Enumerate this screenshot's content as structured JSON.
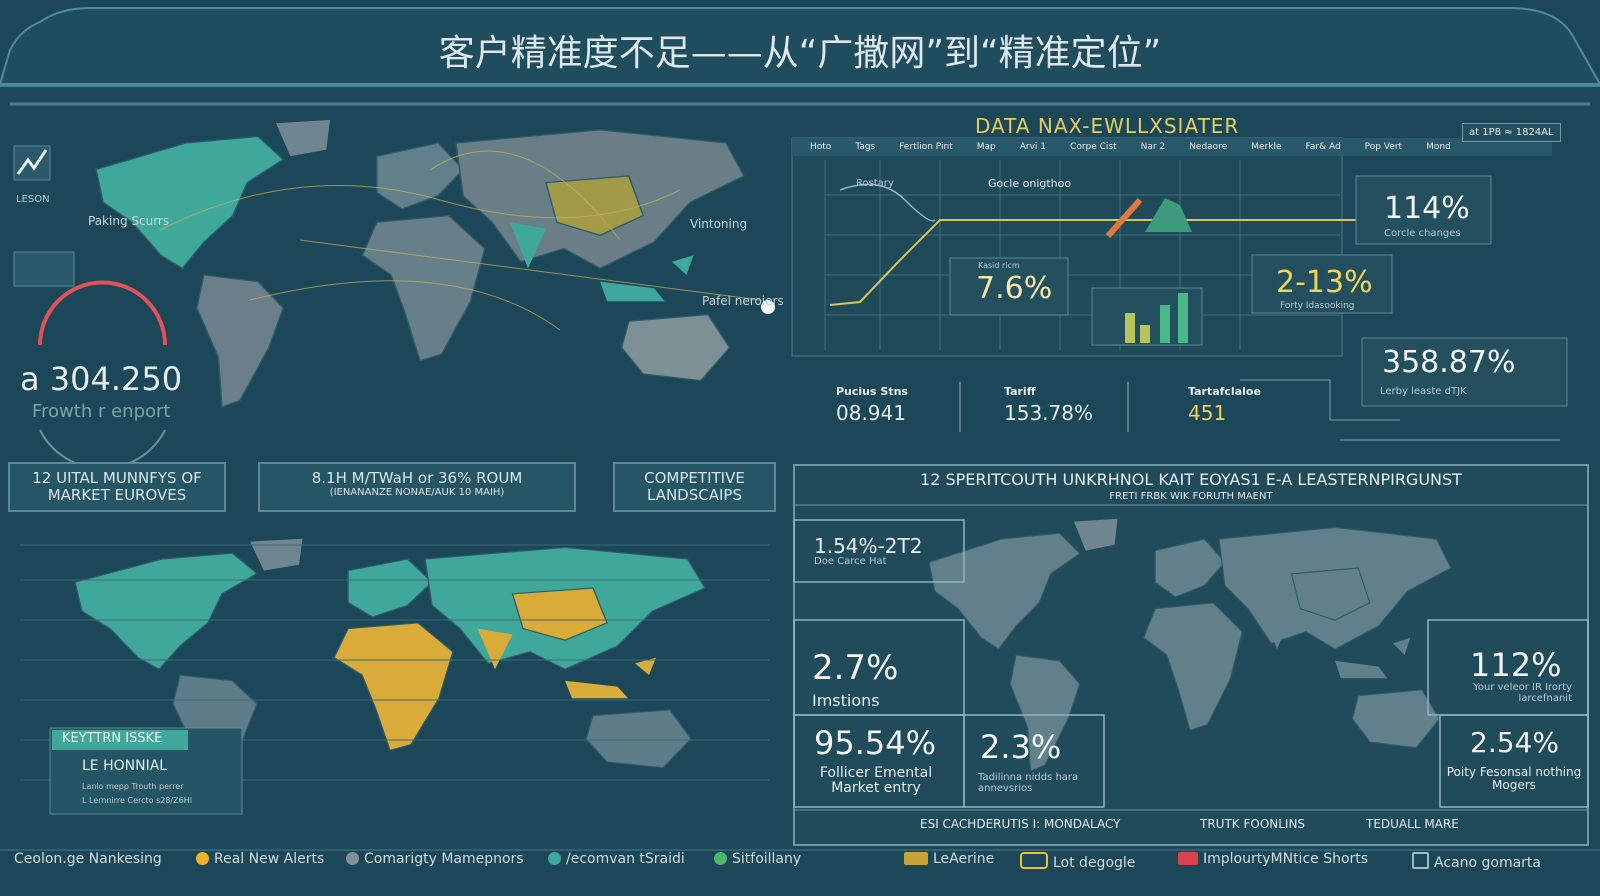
{
  "header": {
    "title": "客户精准度不足——从“广撒网”到“精准定位”"
  },
  "world_panel": {
    "labels": [
      "Paking Scurrs",
      "Vintoning",
      "Pafel neroiers"
    ],
    "gauge_value": "a 304.250",
    "gauge_caption": "Frowth r enport",
    "side_label": "LESON"
  },
  "data_panel": {
    "title": "DATA NAX-EWLLXSIATER",
    "corner": "at 1P8 ≈ 1824AL",
    "columns": [
      "Hoto",
      "Tags",
      "Fertlion Pint",
      "Map",
      "Arvi 1",
      "Corpe Cist",
      "Nar 2",
      "Nedaore",
      "Merkle",
      "Far& Ad",
      "Pop Vert",
      "Mond"
    ],
    "tags": [
      "Rostary",
      "Gocle onigthoo"
    ],
    "metrics": [
      {
        "value": "7.6%",
        "caption": "Kasid ricm"
      },
      {
        "value": "114%",
        "caption": "Corcle changes"
      },
      {
        "value": "2-13%",
        "caption": "Forty Idasooking"
      },
      {
        "value": "358.87%",
        "caption": "Lerby leaste dTJK"
      }
    ],
    "stats": [
      {
        "label": "Pucius Stns",
        "value": "08.941"
      },
      {
        "label": "Tariff",
        "value": "153.78%"
      },
      {
        "label": "Tartafclaloe",
        "value": "451"
      }
    ]
  },
  "buttons": [
    {
      "title": "12 UITAL MUNNFYS OF MARKET EUROVES"
    },
    {
      "title": "8.1H M/TWaH or 36% ROUM",
      "subtitle": "(IENANANZE NONAE/AUK 10 MAIH)"
    },
    {
      "title": "COMPETITIVE LANDSCAIPS"
    }
  ],
  "key_panel": {
    "title": "KEYTTRN ISSKE",
    "item": "LE HONNIAL",
    "lines": [
      "Lanlo mepp Trouth perrer",
      "L Lernnirre Cercto s28/Z6Hl"
    ]
  },
  "region_panel": {
    "title": "12 SPERITCOUTH UNKRHNOL KAIT EOYAS1 E-A LEASTERNPIRGUNST",
    "subtitle": "FRETI FRBK WIK FORUTH MAENT",
    "metrics": [
      {
        "value": "1.54%-2T2",
        "caption": "Doe Carce Hat"
      },
      {
        "value": "2.7%",
        "caption": "Imstions"
      },
      {
        "value": "95.54%",
        "caption": "Follicer Emental Market entry"
      },
      {
        "value": "2.3%",
        "caption": "Tadilinna nidds hara annevsrios"
      },
      {
        "value": "112%",
        "caption": "Your veleor IR Irorty Iarcefnanit"
      },
      {
        "value": "2.54%",
        "caption": "Poity Fesonsal nothing Mogers"
      }
    ],
    "legend": [
      "ESI CACHDERUTIS I: MONDALACY",
      "TRUTK FOONLINS",
      "TEDUALL MARE"
    ]
  },
  "footer": {
    "left": [
      "Ceolon.ge Nankesing",
      "Real New Alerts",
      "Comarigty Mamepnors",
      "/ecomvan tSraidi",
      "Sitfoillany"
    ],
    "right": [
      "LeAerine",
      "Lot degogle",
      "ImplourtyMNtice Shorts",
      "Acano gomarta"
    ]
  }
}
